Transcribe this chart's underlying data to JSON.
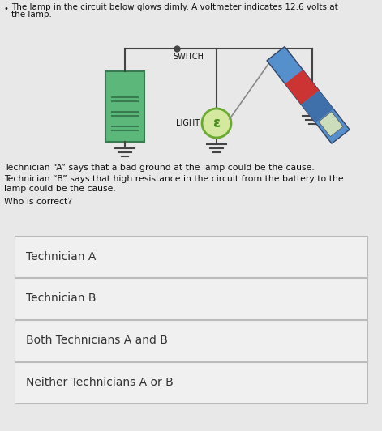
{
  "title_line1": "The lamp in the circuit below glows dimly. A voltmeter indicates 12.6 volts at",
  "title_line2": "the lamp.",
  "bullet": "•",
  "tech_a_text": "Technician “A” says that a bad ground at the lamp could be the cause.",
  "tech_b_line1": "Technician “B” says that high resistance in the circuit from the battery to the",
  "tech_b_line2": "lamp could be the cause.",
  "who_text": "Who is correct?",
  "options": [
    "Technician A",
    "Technician B",
    "Both Technicians A and B",
    "Neither Technicians A or B"
  ],
  "bg_top": "#e8e8e8",
  "bg_bottom": "#c8c8c8",
  "option_bg": "#f0f0f0",
  "option_border": "#bbbbbb",
  "text_color": "#111111",
  "text_color_dark": "#333333",
  "switch_label": "SWITCH",
  "light_label": "LIGHT",
  "battery_fill": "#5cb87a",
  "battery_border": "#3a7a50",
  "battery_line_color": "#3a7a50",
  "wire_color": "#444444",
  "ground_color": "#444444",
  "light_fill": "#d4e8a0",
  "light_border": "#6aaa30",
  "light_letter_color": "#4a8a20",
  "vm_blue": "#5590cc",
  "vm_blue2": "#4070aa",
  "vm_red": "#cc3333",
  "vm_gray": "#aaaaaa",
  "vm_display": "#ccddbb",
  "probe_color": "#888888"
}
